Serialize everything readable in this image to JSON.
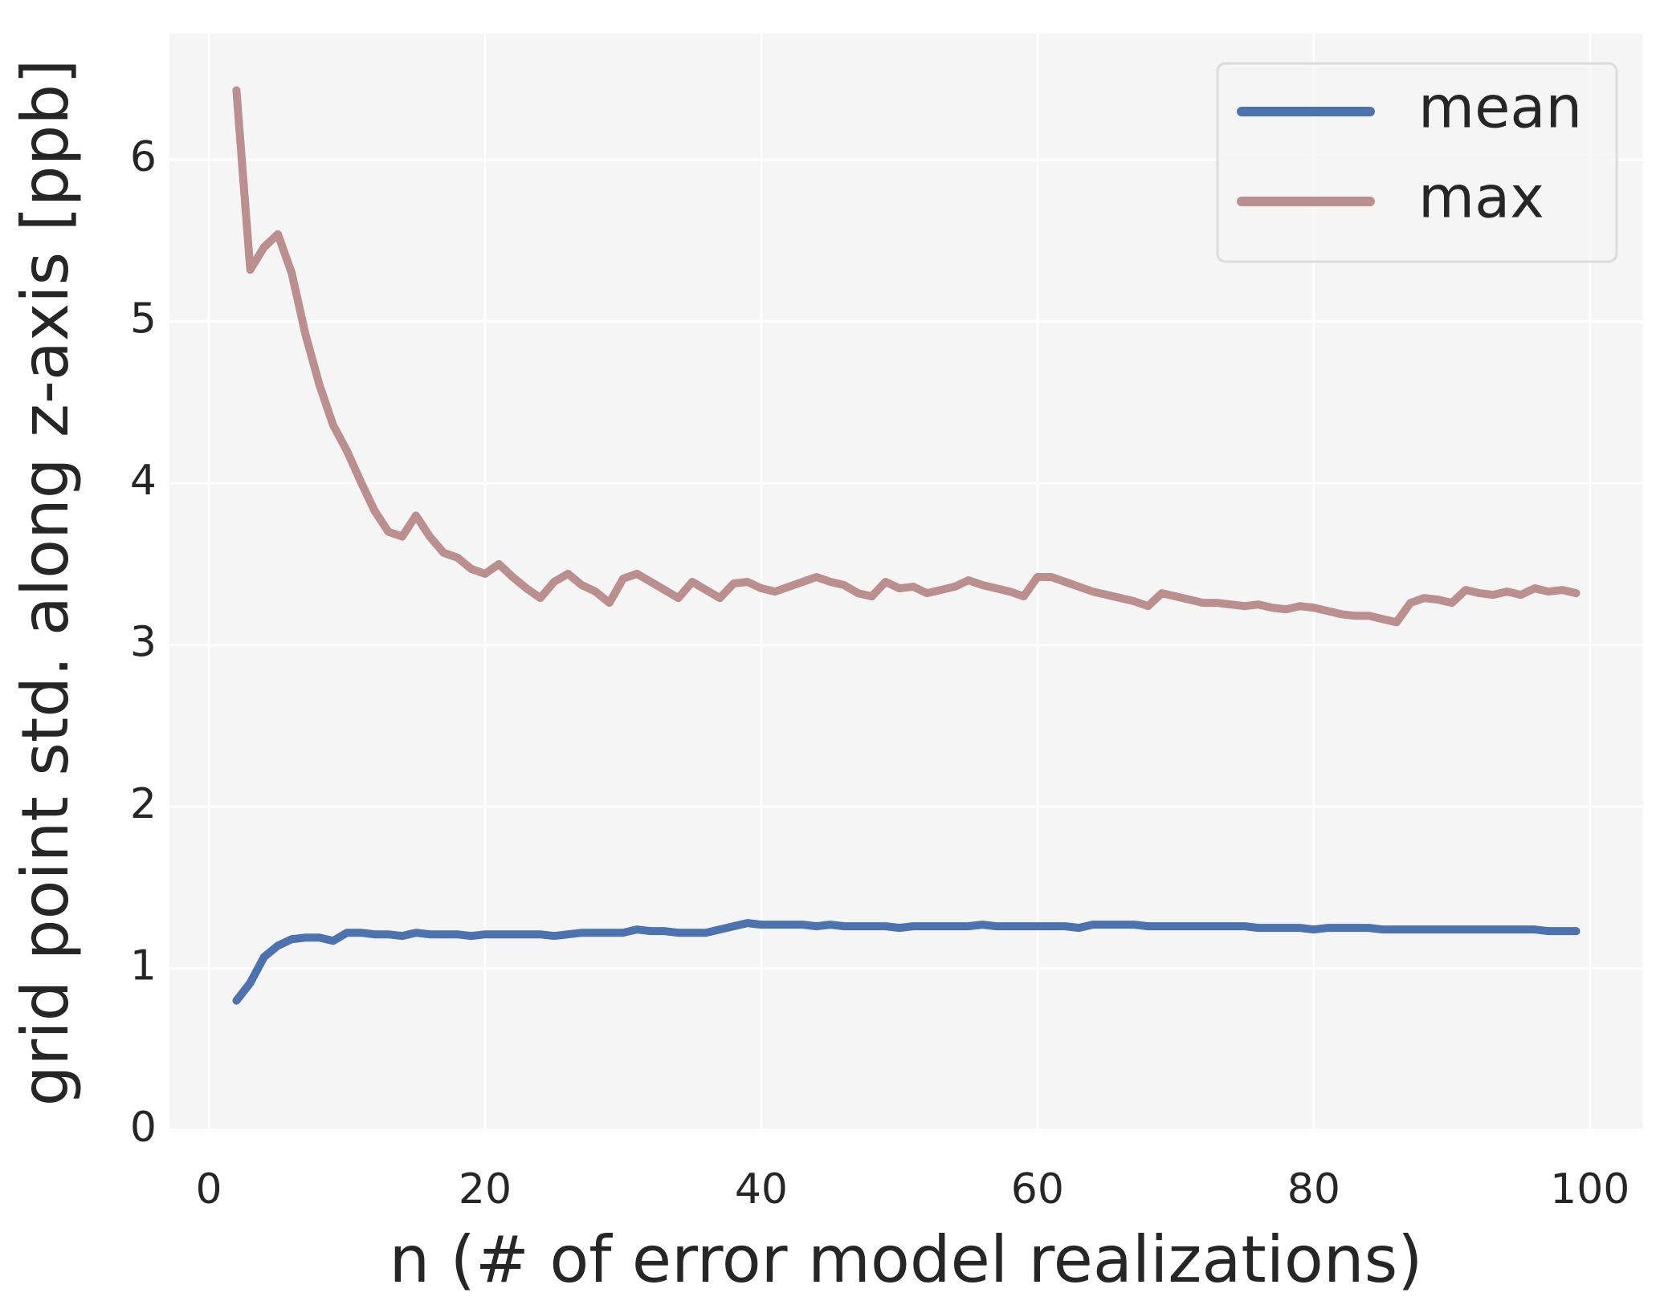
{
  "chart_data": {
    "type": "line",
    "xlabel": "n (# of error model realizations)",
    "ylabel": "grid point std. along z-axis [ppb]",
    "x": [
      2,
      3,
      4,
      5,
      6,
      7,
      8,
      9,
      10,
      11,
      12,
      13,
      14,
      15,
      16,
      17,
      18,
      19,
      20,
      21,
      22,
      23,
      24,
      25,
      26,
      27,
      28,
      29,
      30,
      31,
      32,
      33,
      34,
      35,
      36,
      37,
      38,
      39,
      40,
      41,
      42,
      43,
      44,
      45,
      46,
      47,
      48,
      49,
      50,
      51,
      52,
      53,
      54,
      55,
      56,
      57,
      58,
      59,
      60,
      61,
      62,
      63,
      64,
      65,
      66,
      67,
      68,
      69,
      70,
      71,
      72,
      73,
      74,
      75,
      76,
      77,
      78,
      79,
      80,
      81,
      82,
      83,
      84,
      85,
      86,
      87,
      88,
      89,
      90,
      91,
      92,
      93,
      94,
      95,
      96,
      97,
      98,
      99
    ],
    "series": [
      {
        "name": "mean",
        "color": "#4c72b0",
        "values": [
          0.8,
          0.91,
          1.07,
          1.14,
          1.18,
          1.19,
          1.19,
          1.17,
          1.22,
          1.22,
          1.21,
          1.21,
          1.2,
          1.22,
          1.21,
          1.21,
          1.21,
          1.2,
          1.21,
          1.21,
          1.21,
          1.21,
          1.21,
          1.2,
          1.21,
          1.22,
          1.22,
          1.22,
          1.22,
          1.24,
          1.23,
          1.23,
          1.22,
          1.22,
          1.22,
          1.24,
          1.26,
          1.28,
          1.27,
          1.27,
          1.27,
          1.27,
          1.26,
          1.27,
          1.26,
          1.26,
          1.26,
          1.26,
          1.25,
          1.26,
          1.26,
          1.26,
          1.26,
          1.26,
          1.27,
          1.26,
          1.26,
          1.26,
          1.26,
          1.26,
          1.26,
          1.25,
          1.27,
          1.27,
          1.27,
          1.27,
          1.26,
          1.26,
          1.26,
          1.26,
          1.26,
          1.26,
          1.26,
          1.26,
          1.25,
          1.25,
          1.25,
          1.25,
          1.24,
          1.25,
          1.25,
          1.25,
          1.25,
          1.24,
          1.24,
          1.24,
          1.24,
          1.24,
          1.24,
          1.24,
          1.24,
          1.24,
          1.24,
          1.24,
          1.24,
          1.23,
          1.23,
          1.23
        ]
      },
      {
        "name": "max",
        "color": "#bc8f8f",
        "values": [
          6.43,
          5.32,
          5.46,
          5.54,
          5.3,
          4.92,
          4.61,
          4.36,
          4.2,
          4.01,
          3.83,
          3.7,
          3.67,
          3.8,
          3.67,
          3.57,
          3.54,
          3.47,
          3.44,
          3.5,
          3.42,
          3.35,
          3.29,
          3.39,
          3.44,
          3.37,
          3.33,
          3.26,
          3.41,
          3.44,
          3.39,
          3.34,
          3.29,
          3.39,
          3.34,
          3.29,
          3.38,
          3.39,
          3.35,
          3.33,
          3.36,
          3.39,
          3.42,
          3.39,
          3.37,
          3.32,
          3.3,
          3.39,
          3.35,
          3.36,
          3.32,
          3.34,
          3.36,
          3.4,
          3.37,
          3.35,
          3.33,
          3.3,
          3.42,
          3.42,
          3.39,
          3.36,
          3.33,
          3.31,
          3.29,
          3.27,
          3.24,
          3.32,
          3.3,
          3.28,
          3.26,
          3.26,
          3.25,
          3.24,
          3.25,
          3.23,
          3.22,
          3.24,
          3.23,
          3.21,
          3.19,
          3.18,
          3.18,
          3.16,
          3.14,
          3.26,
          3.29,
          3.28,
          3.26,
          3.34,
          3.32,
          3.31,
          3.33,
          3.31,
          3.35,
          3.33,
          3.34,
          3.32
        ]
      }
    ],
    "xlim": [
      -2.85,
      103.85
    ],
    "xticks": [
      0,
      20,
      40,
      60,
      80,
      100
    ],
    "ylim": [
      -0.01,
      6.78
    ],
    "yticks": [
      0,
      1,
      2,
      3,
      4,
      5,
      6
    ],
    "grid": true,
    "legend": "upper right"
  }
}
